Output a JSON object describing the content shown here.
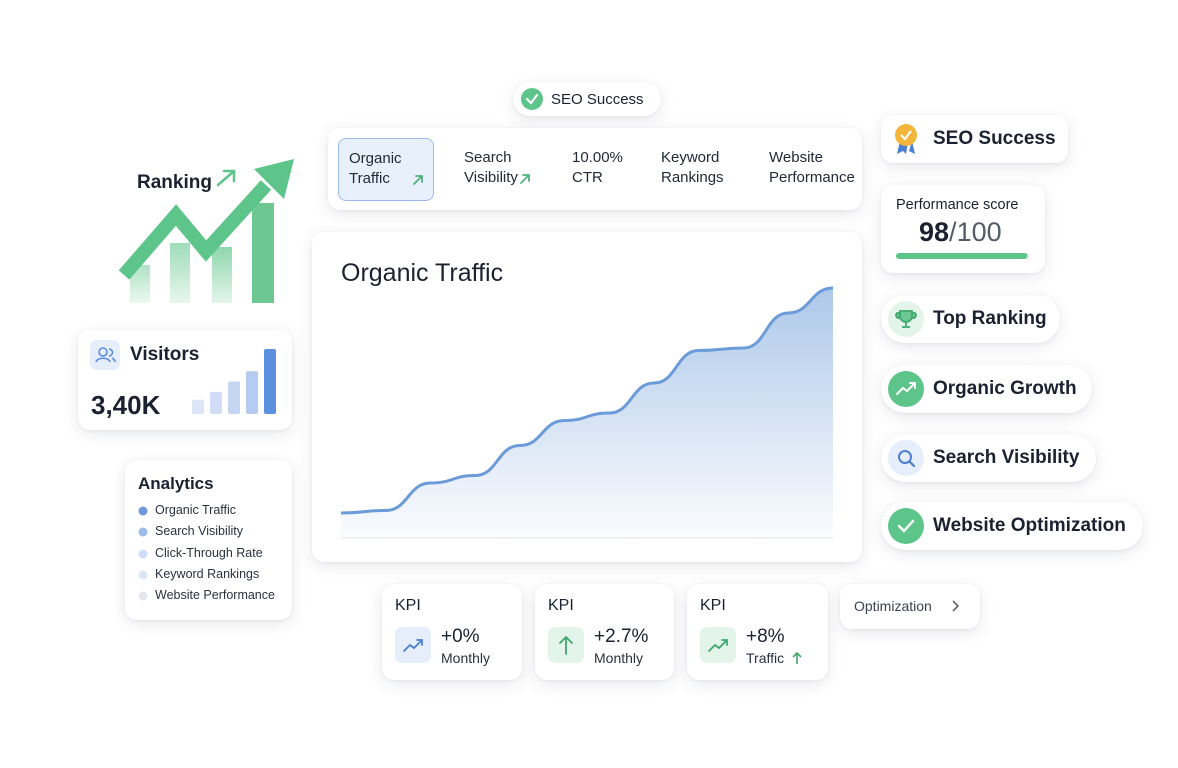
{
  "top_badge": {
    "label": "SEO Success"
  },
  "tabs": [
    {
      "lines": [
        "Organic",
        "Traffic"
      ],
      "selected": true
    },
    {
      "lines": [
        "Search",
        "Visibility"
      ]
    },
    {
      "lines": [
        "10.00%",
        "CTR"
      ]
    },
    {
      "lines": [
        "Keyword",
        "Rankings"
      ]
    },
    {
      "lines": [
        "Website",
        "Performance"
      ]
    }
  ],
  "ranking": {
    "label": "Ranking"
  },
  "visitors": {
    "label": "Visitors",
    "value": "3,40K",
    "bars": [
      22,
      34,
      50,
      66,
      100
    ],
    "ylim": [
      0,
      100
    ]
  },
  "analytics": {
    "title": "Analytics",
    "items": [
      {
        "label": "Organic Traffic",
        "color": "#6f98d8"
      },
      {
        "label": "Search Visibility",
        "color": "#9dbbe8"
      },
      {
        "label": "Click-Through Rate",
        "color": "#cdddf5"
      },
      {
        "label": "Keyword Rankings",
        "color": "#dde6f3"
      },
      {
        "label": "Website Performance",
        "color": "#e4e6ea"
      }
    ]
  },
  "traffic_chart": {
    "type": "line",
    "title": "Organic Traffic",
    "values": [
      10,
      11,
      22,
      25,
      37,
      47,
      50,
      62,
      75,
      76,
      90,
      100
    ],
    "ylim": [
      0,
      100
    ],
    "color": "#6b9bd8"
  },
  "badge": {
    "label": "SEO Success"
  },
  "performance": {
    "label": "Performance score",
    "score": 98,
    "separator": "/",
    "max": 100
  },
  "features": [
    {
      "label": "Top Ranking"
    },
    {
      "label": "Organic Growth"
    },
    {
      "label": "Search Visibility"
    },
    {
      "label": "Website Optimization"
    }
  ],
  "kpis": [
    {
      "title": "KPI",
      "value": "+0%",
      "sub": "Monthly"
    },
    {
      "title": "KPI",
      "value": "+2.7%",
      "sub": "Monthly"
    },
    {
      "title": "KPI",
      "value": "+8%",
      "sub": "Traffic"
    }
  ],
  "button": {
    "label": "Optimization"
  }
}
